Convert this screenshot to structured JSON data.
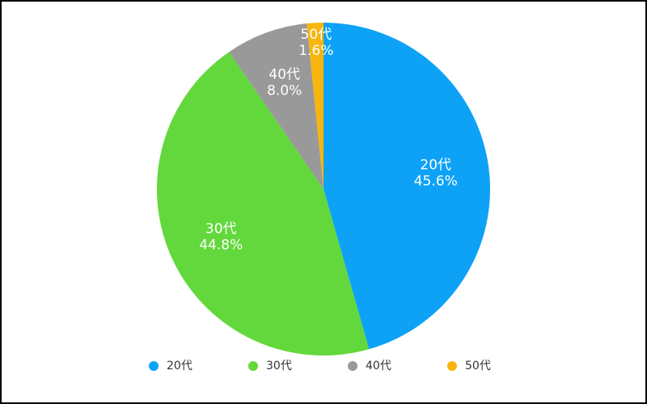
{
  "chart_data": {
    "type": "pie",
    "categories": [
      "20代",
      "30代",
      "40代",
      "50代"
    ],
    "values": [
      45.6,
      44.8,
      8.0,
      1.6
    ],
    "value_labels": [
      "45.6%",
      "44.8%",
      "8.0%",
      "1.6%"
    ],
    "colors": [
      "#0ea2f7",
      "#63d83c",
      "#999999",
      "#f7b50e"
    ],
    "legend": "bottom"
  }
}
